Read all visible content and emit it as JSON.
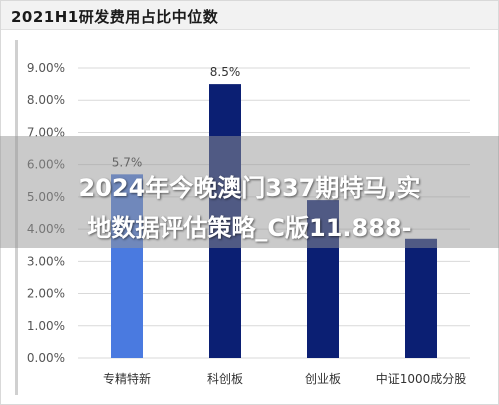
{
  "header": {
    "title": "2021H1研发费用占比中位数"
  },
  "overlay": {
    "line1": "2024年今晚澳门337期特马,实",
    "line2": "地数据评估策略_C版11.888-"
  },
  "colors": {
    "bar_light": "#4a7ae0",
    "bar_dark": "#0b1f73",
    "grid": "#d9d9d9",
    "tick_text": "#555555",
    "label_text": "#333333"
  },
  "chart_data": {
    "type": "bar",
    "categories": [
      "专精特新",
      "科创板",
      "创业板",
      "中证1000成分股"
    ],
    "values": [
      5.7,
      8.5,
      4.9,
      3.7
    ],
    "data_labels": [
      "5.7%",
      "8.5%",
      "",
      ""
    ],
    "bar_colors": [
      "#4a7ae0",
      "#0b1f73",
      "#0b1f73",
      "#0b1f73"
    ],
    "yticks": [
      "0.00%",
      "1.00%",
      "2.00%",
      "3.00%",
      "4.00%",
      "5.00%",
      "6.00%",
      "7.00%",
      "8.00%",
      "9.00%"
    ],
    "ylim": [
      0,
      9
    ],
    "grid": true
  }
}
